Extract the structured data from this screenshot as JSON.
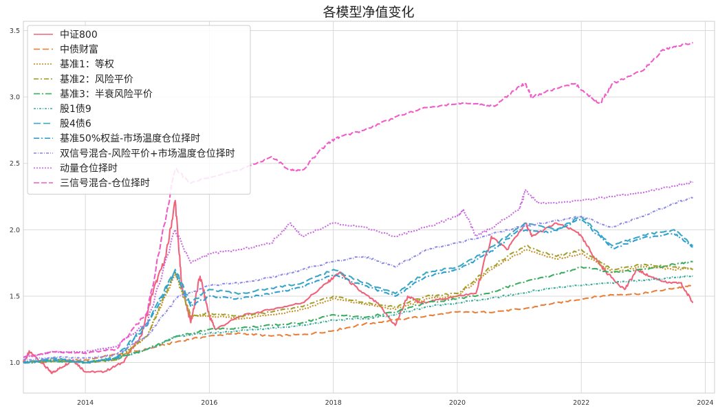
{
  "chart_data": {
    "type": "line",
    "title": "各模型净值变化",
    "xlabel": "",
    "ylabel": "",
    "xlim": [
      2013.0,
      2024.15
    ],
    "ylim": [
      0.77,
      3.57
    ],
    "grid": true,
    "legend_position": "top-left",
    "x_ticks": [
      2014,
      2016,
      2018,
      2020,
      2022,
      2024
    ],
    "x_tick_labels": [
      "2014",
      "2016",
      "2018",
      "2020",
      "2022",
      "2024"
    ],
    "y_ticks": [
      1.0,
      1.5,
      2.0,
      2.5,
      3.0,
      3.5
    ],
    "y_tick_labels": [
      "1.0",
      "1.5",
      "2.0",
      "2.5",
      "3.0",
      "3.5"
    ],
    "series": [
      {
        "name": "中证800",
        "color": "#f0627a",
        "dash": "",
        "x": [
          2013.0,
          2013.1,
          2013.3,
          2013.45,
          2013.6,
          2013.8,
          2014.0,
          2014.3,
          2014.6,
          2014.9,
          2015.1,
          2015.3,
          2015.45,
          2015.55,
          2015.7,
          2015.85,
          2016.0,
          2016.1,
          2016.5,
          2017.0,
          2017.5,
          2017.9,
          2018.1,
          2018.4,
          2018.7,
          2019.0,
          2019.2,
          2019.4,
          2019.8,
          2020.0,
          2020.3,
          2020.55,
          2020.8,
          2021.1,
          2021.2,
          2021.6,
          2021.95,
          2022.2,
          2022.4,
          2022.7,
          2022.9,
          2023.1,
          2023.4,
          2023.6,
          2023.8
        ],
        "values": [
          1.0,
          1.08,
          1.0,
          0.92,
          0.96,
          1.02,
          0.93,
          0.93,
          1.0,
          1.2,
          1.55,
          1.8,
          2.22,
          1.6,
          1.3,
          1.65,
          1.35,
          1.25,
          1.35,
          1.4,
          1.45,
          1.6,
          1.68,
          1.55,
          1.45,
          1.28,
          1.5,
          1.45,
          1.48,
          1.5,
          1.52,
          1.95,
          1.85,
          2.05,
          1.95,
          2.05,
          1.98,
          1.8,
          1.68,
          1.55,
          1.7,
          1.65,
          1.6,
          1.6,
          1.45
        ]
      },
      {
        "name": "中债财富",
        "color": "#e9803a",
        "dash": "9,4",
        "x": [
          2013.0,
          2013.5,
          2014.0,
          2014.5,
          2015.0,
          2015.5,
          2016.0,
          2016.5,
          2017.0,
          2017.5,
          2018.0,
          2018.5,
          2019.0,
          2019.5,
          2020.0,
          2020.5,
          2021.0,
          2021.5,
          2022.0,
          2022.5,
          2023.0,
          2023.5,
          2023.8
        ],
        "values": [
          1.0,
          1.01,
          1.02,
          1.06,
          1.1,
          1.16,
          1.2,
          1.22,
          1.2,
          1.21,
          1.24,
          1.29,
          1.32,
          1.35,
          1.38,
          1.38,
          1.4,
          1.44,
          1.48,
          1.51,
          1.52,
          1.56,
          1.58
        ]
      },
      {
        "name": "基准1：等权",
        "color": "#c88e24",
        "dash": "2,2",
        "x": [
          2013.0,
          2013.5,
          2014.0,
          2014.5,
          2015.0,
          2015.45,
          2015.7,
          2016.0,
          2016.5,
          2017.0,
          2017.5,
          2018.0,
          2018.5,
          2019.0,
          2019.5,
          2020.0,
          2020.55,
          2021.1,
          2021.6,
          2022.0,
          2022.5,
          2023.0,
          2023.5,
          2023.8
        ],
        "values": [
          1.0,
          1.02,
          1.0,
          1.02,
          1.2,
          1.66,
          1.35,
          1.35,
          1.33,
          1.36,
          1.4,
          1.48,
          1.44,
          1.4,
          1.48,
          1.5,
          1.7,
          1.85,
          1.78,
          1.82,
          1.68,
          1.72,
          1.7,
          1.71
        ]
      },
      {
        "name": "基准2：风险平价",
        "color": "#a2a02b",
        "dash": "7,3,2,3",
        "x": [
          2013.0,
          2013.5,
          2014.0,
          2014.5,
          2015.0,
          2015.45,
          2015.7,
          2016.0,
          2016.5,
          2017.0,
          2017.5,
          2018.0,
          2018.5,
          2019.0,
          2019.5,
          2020.0,
          2020.55,
          2021.1,
          2021.6,
          2022.0,
          2022.5,
          2023.0,
          2023.5,
          2023.8
        ],
        "values": [
          1.0,
          1.02,
          1.0,
          1.02,
          1.2,
          1.68,
          1.35,
          1.37,
          1.35,
          1.38,
          1.42,
          1.5,
          1.45,
          1.42,
          1.5,
          1.52,
          1.72,
          1.88,
          1.8,
          1.85,
          1.7,
          1.74,
          1.72,
          1.7
        ]
      },
      {
        "name": "基准3：半衰风险平价",
        "color": "#3aae5e",
        "dash": "9,3,2,3",
        "x": [
          2013.0,
          2013.5,
          2014.0,
          2014.5,
          2015.0,
          2015.5,
          2016.0,
          2016.5,
          2017.0,
          2017.5,
          2018.0,
          2018.5,
          2019.0,
          2019.5,
          2020.0,
          2020.5,
          2021.0,
          2021.5,
          2022.0,
          2022.5,
          2023.0,
          2023.5,
          2023.8
        ],
        "values": [
          1.0,
          1.01,
          1.0,
          1.03,
          1.1,
          1.2,
          1.25,
          1.26,
          1.28,
          1.3,
          1.36,
          1.34,
          1.38,
          1.45,
          1.48,
          1.52,
          1.6,
          1.65,
          1.72,
          1.68,
          1.7,
          1.74,
          1.76
        ]
      },
      {
        "name": "股1债9",
        "color": "#36ab9a",
        "dash": "3,2,1,2",
        "x": [
          2013.0,
          2013.5,
          2014.0,
          2014.5,
          2015.0,
          2015.5,
          2016.0,
          2016.5,
          2017.0,
          2017.5,
          2018.0,
          2018.5,
          2019.0,
          2019.5,
          2020.0,
          2020.5,
          2021.0,
          2021.5,
          2022.0,
          2022.5,
          2023.0,
          2023.5,
          2023.8
        ],
        "values": [
          1.0,
          1.01,
          1.0,
          1.03,
          1.1,
          1.2,
          1.22,
          1.24,
          1.26,
          1.28,
          1.32,
          1.33,
          1.36,
          1.42,
          1.45,
          1.48,
          1.52,
          1.56,
          1.58,
          1.6,
          1.62,
          1.64,
          1.65
        ]
      },
      {
        "name": "股4债6",
        "color": "#39a6c4",
        "dash": "10,4",
        "x": [
          2013.0,
          2013.5,
          2014.0,
          2014.5,
          2015.0,
          2015.45,
          2015.7,
          2016.0,
          2016.5,
          2017.0,
          2017.5,
          2018.0,
          2018.5,
          2019.0,
          2019.5,
          2020.0,
          2020.5,
          2021.1,
          2021.6,
          2022.0,
          2022.5,
          2023.0,
          2023.5,
          2023.8
        ],
        "values": [
          1.0,
          1.03,
          1.0,
          1.04,
          1.3,
          1.7,
          1.45,
          1.55,
          1.52,
          1.56,
          1.6,
          1.7,
          1.6,
          1.52,
          1.68,
          1.72,
          1.85,
          2.05,
          2.0,
          2.1,
          1.88,
          1.96,
          2.0,
          1.88
        ]
      },
      {
        "name": "基准50%权益-市场温度仓位择时",
        "color": "#2e9fd0",
        "dash": "8,3,2,3",
        "x": [
          2013.0,
          2013.5,
          2014.0,
          2014.5,
          2015.0,
          2015.45,
          2015.7,
          2016.0,
          2016.5,
          2017.0,
          2017.5,
          2018.0,
          2018.5,
          2019.0,
          2019.5,
          2020.0,
          2020.5,
          2021.0,
          2021.5,
          2022.0,
          2022.5,
          2023.0,
          2023.5,
          2023.8
        ],
        "values": [
          1.0,
          1.02,
          1.0,
          1.03,
          1.28,
          1.68,
          1.42,
          1.5,
          1.48,
          1.52,
          1.57,
          1.66,
          1.58,
          1.5,
          1.65,
          1.7,
          1.82,
          2.0,
          1.98,
          2.08,
          1.86,
          1.94,
          1.97,
          1.87
        ]
      },
      {
        "name": "双信号混合-风险平价+市场温度仓位择时",
        "color": "#8f8ae8",
        "dash": "4,2,1,2",
        "x": [
          2013.0,
          2013.5,
          2014.0,
          2014.5,
          2015.0,
          2015.5,
          2016.0,
          2016.5,
          2017.0,
          2017.5,
          2018.0,
          2018.5,
          2019.0,
          2019.5,
          2020.0,
          2020.5,
          2021.0,
          2021.5,
          2022.0,
          2022.5,
          2023.0,
          2023.5,
          2023.8
        ],
        "values": [
          1.02,
          1.04,
          1.03,
          1.06,
          1.2,
          1.5,
          1.58,
          1.6,
          1.64,
          1.7,
          1.76,
          1.8,
          1.72,
          1.85,
          1.9,
          1.96,
          2.02,
          2.06,
          2.1,
          2.02,
          2.1,
          2.2,
          2.24
        ]
      },
      {
        "name": "动量仓位择时",
        "color": "#c867e0",
        "dash": "2,2",
        "x": [
          2013.0,
          2013.5,
          2014.0,
          2014.5,
          2015.0,
          2015.45,
          2015.7,
          2016.0,
          2016.5,
          2017.0,
          2017.3,
          2017.5,
          2018.0,
          2018.5,
          2019.0,
          2019.5,
          2020.0,
          2020.1,
          2020.3,
          2020.5,
          2021.0,
          2021.1,
          2021.3,
          2021.5,
          2022.0,
          2022.5,
          2023.0,
          2023.5,
          2023.8
        ],
        "values": [
          1.04,
          1.08,
          1.08,
          1.12,
          1.3,
          2.0,
          1.75,
          1.82,
          1.85,
          1.9,
          2.05,
          1.95,
          2.05,
          2.02,
          1.95,
          2.02,
          2.1,
          2.15,
          1.95,
          2.0,
          2.15,
          2.3,
          2.2,
          2.2,
          2.22,
          2.25,
          2.28,
          2.33,
          2.36
        ]
      },
      {
        "name": "三信号混合-仓位择时",
        "color": "#f05ac9",
        "dash": "8,3",
        "x": [
          2013.0,
          2013.5,
          2014.0,
          2014.5,
          2015.0,
          2015.45,
          2015.7,
          2016.0,
          2016.5,
          2017.0,
          2017.3,
          2017.5,
          2017.9,
          2018.1,
          2018.5,
          2019.0,
          2019.5,
          2020.0,
          2020.3,
          2020.6,
          2021.0,
          2021.1,
          2021.2,
          2021.5,
          2021.9,
          2022.1,
          2022.3,
          2022.5,
          2023.0,
          2023.3,
          2023.5,
          2023.8
        ],
        "values": [
          1.04,
          1.08,
          1.07,
          1.1,
          1.38,
          2.46,
          2.35,
          2.4,
          2.45,
          2.55,
          2.45,
          2.45,
          2.65,
          2.7,
          2.75,
          2.85,
          2.92,
          2.95,
          2.95,
          2.93,
          3.08,
          3.1,
          3.0,
          3.05,
          3.1,
          3.02,
          2.95,
          3.1,
          3.2,
          3.35,
          3.38,
          3.41
        ]
      }
    ]
  }
}
